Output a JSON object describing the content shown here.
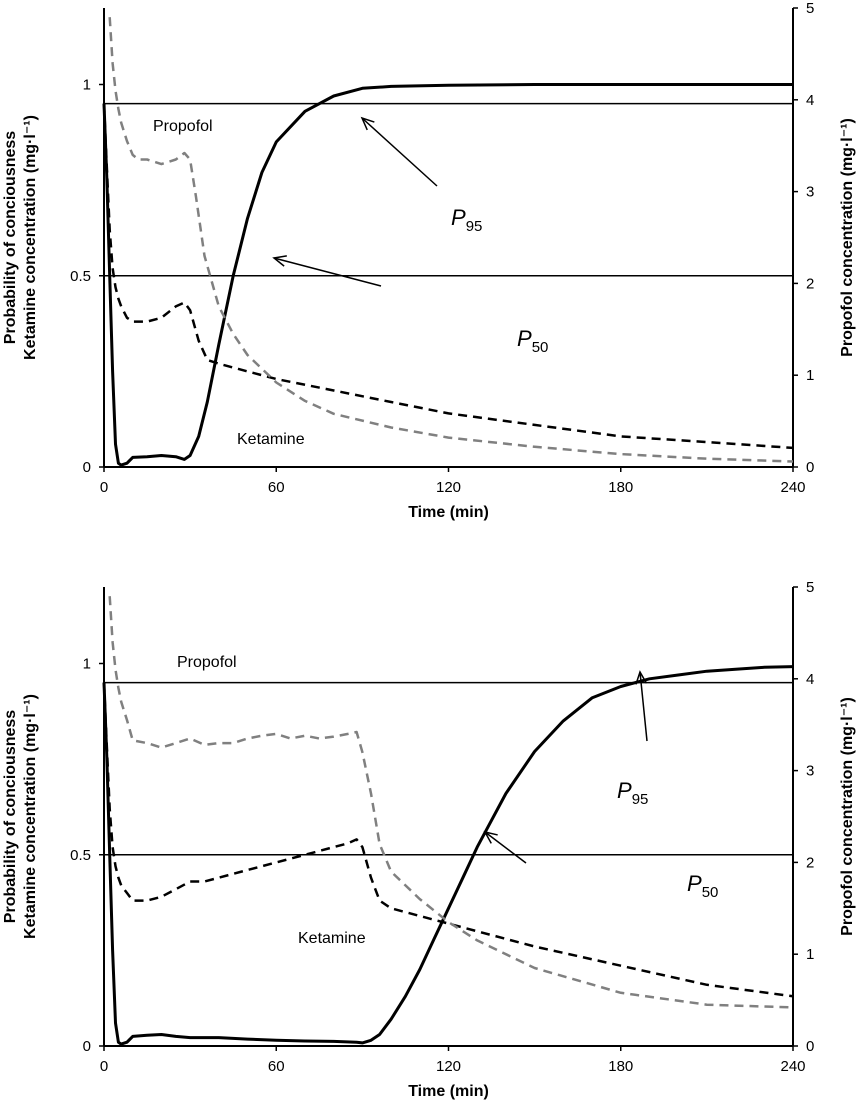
{
  "chart_data": [
    {
      "type": "line",
      "xlabel": "Time (min)",
      "ylabel_left_line1": "Probability of conciousness",
      "ylabel_left_line2": "Ketamine concentration (mg·l⁻¹)",
      "ylabel_right": "Propofol concentration (mg·l⁻¹)",
      "xlim": [
        0,
        240
      ],
      "ylim_left": [
        0,
        1.2
      ],
      "ylim_right": [
        0,
        5
      ],
      "xticks": [
        "0",
        "60",
        "120",
        "180",
        "240"
      ],
      "yticks_left": [
        "0",
        "0.5",
        "1"
      ],
      "yticks_right": [
        "0",
        "1",
        "2",
        "3",
        "4",
        "5"
      ],
      "grid": false,
      "series": [
        {
          "name": "Probability of conciousness",
          "axis": "left",
          "color": "#000000",
          "style": "solid",
          "x": [
            0,
            1,
            2,
            3,
            4,
            5,
            6,
            8,
            10,
            15,
            20,
            25,
            28,
            30,
            33,
            36,
            40,
            45,
            50,
            55,
            60,
            70,
            80,
            90,
            100,
            120,
            150,
            180,
            210,
            240
          ],
          "y": [
            0.95,
            0.75,
            0.5,
            0.25,
            0.06,
            0.01,
            0.005,
            0.01,
            0.025,
            0.027,
            0.03,
            0.027,
            0.02,
            0.03,
            0.08,
            0.17,
            0.32,
            0.5,
            0.65,
            0.77,
            0.85,
            0.93,
            0.97,
            0.99,
            0.995,
            0.998,
            1.0,
            1.0,
            1.0,
            1.0
          ]
        },
        {
          "name": "Ketamine",
          "axis": "left",
          "color": "#000000",
          "style": "dashed",
          "x": [
            0,
            1,
            2,
            3,
            4,
            5,
            6,
            8,
            10,
            15,
            20,
            25,
            28,
            30,
            33,
            36,
            40,
            50,
            60,
            80,
            100,
            120,
            150,
            180,
            210,
            240
          ],
          "y": [
            0.95,
            0.78,
            0.62,
            0.52,
            0.47,
            0.44,
            0.42,
            0.39,
            0.38,
            0.38,
            0.39,
            0.42,
            0.43,
            0.41,
            0.33,
            0.28,
            0.27,
            0.25,
            0.23,
            0.2,
            0.17,
            0.14,
            0.11,
            0.08,
            0.065,
            0.05
          ]
        },
        {
          "name": "Propofol",
          "axis": "right",
          "color": "#808080",
          "style": "dashed",
          "x": [
            2,
            3,
            4,
            5,
            6,
            8,
            10,
            12,
            15,
            20,
            25,
            28,
            30,
            32,
            35,
            40,
            45,
            50,
            60,
            70,
            80,
            100,
            120,
            150,
            180,
            210,
            240
          ],
          "y": [
            4.9,
            4.4,
            4.1,
            3.9,
            3.75,
            3.55,
            3.4,
            3.35,
            3.35,
            3.3,
            3.35,
            3.42,
            3.35,
            2.95,
            2.3,
            1.75,
            1.45,
            1.22,
            0.92,
            0.72,
            0.58,
            0.43,
            0.32,
            0.22,
            0.14,
            0.09,
            0.06
          ]
        }
      ],
      "hlines": [
        {
          "y": 0.95,
          "axis": "left"
        },
        {
          "y": 0.5,
          "axis": "left"
        }
      ],
      "labels": {
        "propofol": "Propofol",
        "ketamine": "Ketamine",
        "p95_main": "P",
        "p95_sub": "95",
        "p50_main": "P",
        "p50_sub": "50"
      },
      "annotations": [
        {
          "text": "P95",
          "points_to": [
            84,
            0.95
          ]
        },
        {
          "text": "P50",
          "points_to": [
            46,
            0.5
          ]
        }
      ]
    },
    {
      "type": "line",
      "xlabel": "Time (min)",
      "ylabel_left_line1": "Probability of conciousness",
      "ylabel_left_line2": "Ketamine concentration (mg·l⁻¹)",
      "ylabel_right": "Propofol concentration (mg·l⁻¹)",
      "xlim": [
        0,
        240
      ],
      "ylim_left": [
        0,
        1.2
      ],
      "ylim_right": [
        0,
        5
      ],
      "xticks": [
        "0",
        "60",
        "120",
        "180",
        "240"
      ],
      "yticks_left": [
        "0",
        "0.5",
        "1"
      ],
      "yticks_right": [
        "0",
        "1",
        "2",
        "3",
        "4",
        "5"
      ],
      "grid": false,
      "series": [
        {
          "name": "Probability of conciousness",
          "axis": "left",
          "color": "#000000",
          "style": "solid",
          "x": [
            0,
            1,
            2,
            3,
            4,
            5,
            6,
            8,
            10,
            15,
            20,
            25,
            30,
            40,
            50,
            60,
            70,
            80,
            88,
            90,
            93,
            96,
            100,
            105,
            110,
            115,
            120,
            125,
            130,
            140,
            150,
            160,
            170,
            180,
            190,
            200,
            210,
            220,
            230,
            240
          ],
          "y": [
            0.95,
            0.75,
            0.5,
            0.25,
            0.06,
            0.01,
            0.005,
            0.01,
            0.025,
            0.028,
            0.03,
            0.025,
            0.022,
            0.022,
            0.018,
            0.015,
            0.013,
            0.012,
            0.01,
            0.008,
            0.015,
            0.03,
            0.07,
            0.13,
            0.2,
            0.28,
            0.36,
            0.44,
            0.52,
            0.66,
            0.77,
            0.85,
            0.91,
            0.94,
            0.96,
            0.97,
            0.98,
            0.985,
            0.99,
            0.992
          ]
        },
        {
          "name": "Ketamine",
          "axis": "left",
          "color": "#000000",
          "style": "dashed",
          "x": [
            0,
            1,
            2,
            3,
            4,
            5,
            6,
            8,
            10,
            15,
            20,
            25,
            30,
            35,
            40,
            50,
            60,
            70,
            80,
            85,
            88,
            90,
            93,
            96,
            100,
            110,
            120,
            130,
            150,
            180,
            210,
            240
          ],
          "y": [
            0.95,
            0.78,
            0.62,
            0.52,
            0.47,
            0.44,
            0.42,
            0.4,
            0.38,
            0.38,
            0.39,
            0.41,
            0.43,
            0.43,
            0.44,
            0.46,
            0.48,
            0.5,
            0.52,
            0.53,
            0.54,
            0.52,
            0.44,
            0.38,
            0.36,
            0.34,
            0.32,
            0.3,
            0.26,
            0.21,
            0.16,
            0.13
          ]
        },
        {
          "name": "Propofol",
          "axis": "right",
          "color": "#808080",
          "style": "dashed",
          "x": [
            2,
            3,
            4,
            5,
            6,
            8,
            10,
            15,
            20,
            25,
            30,
            35,
            40,
            45,
            50,
            55,
            60,
            65,
            70,
            75,
            80,
            85,
            88,
            90,
            93,
            96,
            100,
            110,
            120,
            130,
            150,
            180,
            210,
            240
          ],
          "y": [
            4.9,
            4.4,
            4.1,
            3.9,
            3.75,
            3.55,
            3.33,
            3.3,
            3.25,
            3.3,
            3.35,
            3.28,
            3.3,
            3.3,
            3.35,
            3.38,
            3.4,
            3.35,
            3.38,
            3.35,
            3.37,
            3.4,
            3.42,
            3.2,
            2.75,
            2.2,
            1.9,
            1.6,
            1.35,
            1.15,
            0.85,
            0.58,
            0.45,
            0.42
          ]
        }
      ],
      "hlines": [
        {
          "y": 0.95,
          "axis": "left"
        },
        {
          "y": 0.5,
          "axis": "left"
        }
      ],
      "labels": {
        "propofol": "Propofol",
        "ketamine": "Ketamine",
        "p95_main": "P",
        "p95_sub": "95",
        "p50_main": "P",
        "p50_sub": "50"
      },
      "annotations": [
        {
          "text": "P95",
          "points_to": [
            186,
            0.95
          ]
        },
        {
          "text": "P50",
          "points_to": [
            129,
            0.5
          ]
        }
      ]
    }
  ]
}
